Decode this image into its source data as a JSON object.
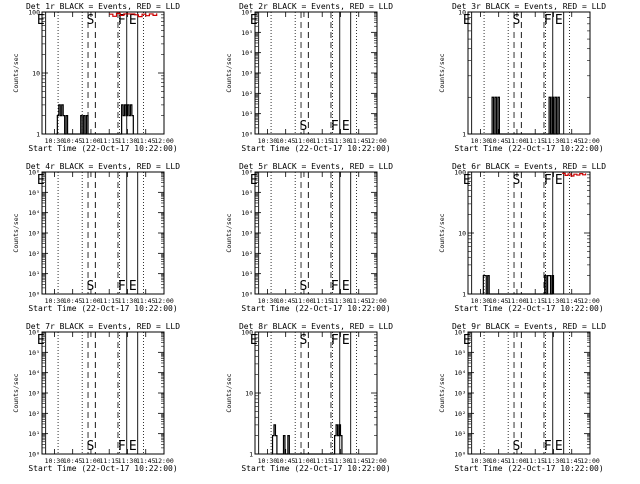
{
  "chart_data": [
    {
      "type": "line",
      "title": "Det 1r  BLACK = Events, RED = LLD",
      "xlabel": "Start Time (22-Oct-17 10:22:00)",
      "ylabel": "Counts/sec",
      "yscale": "log",
      "ylim": [
        1,
        100
      ],
      "yticks": [
        "1",
        "10",
        "100"
      ],
      "xlim": [
        10.33,
        12.0
      ],
      "xticks": [
        "10:30",
        "10:45",
        "11:00",
        "11:15",
        "11:30",
        "11:45",
        "12:00"
      ],
      "markers": [
        {
          "label": "E",
          "x": 10.38,
          "style": "solid"
        },
        {
          "label": "S",
          "x": 11.06,
          "style": "dashed"
        },
        {
          "label": "F",
          "x": 11.49,
          "style": "solid"
        },
        {
          "label": "E",
          "x": 11.64,
          "style": "solid"
        }
      ],
      "dotted": [
        10.55,
        10.88,
        11.39,
        11.72
      ],
      "dashed": [
        10.96,
        11.37
      ],
      "series": [
        {
          "name": "Events",
          "color": "#000000",
          "points": [
            [
              10.52,
              1
            ],
            [
              10.54,
              2
            ],
            [
              10.56,
              3
            ],
            [
              10.58,
              2
            ],
            [
              10.6,
              3
            ],
            [
              10.62,
              2
            ],
            [
              10.64,
              1
            ],
            [
              10.66,
              2
            ],
            [
              10.68,
              1
            ],
            [
              10.84,
              1
            ],
            [
              10.86,
              2
            ],
            [
              10.88,
              1
            ],
            [
              10.9,
              2
            ],
            [
              10.92,
              1
            ],
            [
              10.94,
              2
            ],
            [
              10.96,
              1
            ],
            [
              11.42,
              3
            ],
            [
              11.44,
              2
            ],
            [
              11.46,
              3
            ],
            [
              11.48,
              2
            ],
            [
              11.5,
              3
            ],
            [
              11.52,
              2
            ],
            [
              11.54,
              3
            ],
            [
              11.56,
              2
            ],
            [
              11.58,
              1
            ]
          ]
        },
        {
          "name": "LLD",
          "color": "#cc0000",
          "points": [
            [
              11.25,
              92
            ],
            [
              11.3,
              85
            ],
            [
              11.35,
              95
            ],
            [
              11.4,
              88
            ],
            [
              11.45,
              93
            ],
            [
              11.6,
              90
            ],
            [
              11.65,
              84
            ],
            [
              11.7,
              92
            ],
            [
              11.75,
              87
            ],
            [
              11.8,
              93
            ],
            [
              11.85,
              88
            ],
            [
              11.9,
              95
            ]
          ]
        }
      ]
    },
    {
      "type": "line",
      "title": "Det 2r  BLACK = Events, RED = LLD",
      "xlabel": "Start Time (22-Oct-17 10:22:00)",
      "ylabel": "Counts/sec",
      "yscale": "log",
      "ylim": [
        1,
        1000000
      ],
      "yticks": [
        "10⁰",
        "10¹",
        "10²",
        "10³",
        "10⁴",
        "10⁵",
        "10⁶"
      ],
      "xlim": [
        10.33,
        12.0
      ],
      "xticks": [
        "10:30",
        "10:45",
        "11:00",
        "11:15",
        "11:30",
        "11:45",
        "12:00"
      ],
      "markers": [
        {
          "label": "E",
          "x": 10.38,
          "style": "solid"
        },
        {
          "label": "S",
          "x": 11.06,
          "style": "dashed"
        },
        {
          "label": "F",
          "x": 11.49,
          "style": "solid"
        },
        {
          "label": "E",
          "x": 11.64,
          "style": "solid"
        }
      ],
      "dotted": [
        10.55,
        10.88,
        11.39,
        11.72
      ],
      "dashed": [
        10.96,
        11.37
      ],
      "series": []
    },
    {
      "type": "line",
      "title": "Det 3r  BLACK = Events, RED = LLD",
      "xlabel": "Start Time (22-Oct-17 10:22:00)",
      "ylabel": "Counts/sec",
      "yscale": "log",
      "ylim": [
        1,
        10
      ],
      "yticks": [
        "1",
        "10"
      ],
      "xlim": [
        10.33,
        12.0
      ],
      "xticks": [
        "10:30",
        "10:45",
        "11:00",
        "11:15",
        "11:30",
        "11:45",
        "12:00"
      ],
      "markers": [
        {
          "label": "E",
          "x": 10.38,
          "style": "solid"
        },
        {
          "label": "S",
          "x": 11.06,
          "style": "dashed"
        },
        {
          "label": "F",
          "x": 11.49,
          "style": "solid"
        },
        {
          "label": "E",
          "x": 11.64,
          "style": "solid"
        }
      ],
      "dotted": [
        10.55,
        10.88,
        11.39,
        11.72
      ],
      "dashed": [
        10.96,
        11.37
      ],
      "series": [
        {
          "name": "Events",
          "color": "#000000",
          "points": [
            [
              10.64,
              1
            ],
            [
              10.66,
              2
            ],
            [
              10.68,
              1
            ],
            [
              10.7,
              2
            ],
            [
              10.72,
              1
            ],
            [
              10.74,
              2
            ],
            [
              10.76,
              1
            ],
            [
              11.42,
              1
            ],
            [
              11.44,
              2
            ],
            [
              11.46,
              1
            ],
            [
              11.48,
              2
            ],
            [
              11.5,
              1
            ],
            [
              11.52,
              2
            ],
            [
              11.54,
              1
            ],
            [
              11.56,
              2
            ],
            [
              11.58,
              1
            ]
          ]
        }
      ]
    },
    {
      "type": "line",
      "title": "Det 4r  BLACK = Events, RED = LLD",
      "xlabel": "Start Time (22-Oct-17 10:22:00)",
      "ylabel": "Counts/sec",
      "yscale": "log",
      "ylim": [
        1,
        1000000
      ],
      "yticks": [
        "10⁰",
        "10¹",
        "10²",
        "10³",
        "10⁴",
        "10⁵",
        "10⁶"
      ],
      "xlim": [
        10.33,
        12.0
      ],
      "xticks": [
        "10:30",
        "10:45",
        "11:00",
        "11:15",
        "11:30",
        "11:45",
        "12:00"
      ],
      "markers": [
        {
          "label": "E",
          "x": 10.38,
          "style": "solid"
        },
        {
          "label": "S",
          "x": 11.06,
          "style": "dashed"
        },
        {
          "label": "F",
          "x": 11.49,
          "style": "solid"
        },
        {
          "label": "E",
          "x": 11.64,
          "style": "solid"
        }
      ],
      "dotted": [
        10.55,
        10.88,
        11.39,
        11.72
      ],
      "dashed": [
        10.96,
        11.37
      ],
      "series": []
    },
    {
      "type": "line",
      "title": "Det 5r  BLACK = Events, RED = LLD",
      "xlabel": "Start Time (22-Oct-17 10:22:00)",
      "ylabel": "Counts/sec",
      "yscale": "log",
      "ylim": [
        1,
        1000000
      ],
      "yticks": [
        "10⁰",
        "10¹",
        "10²",
        "10³",
        "10⁴",
        "10⁵",
        "10⁶"
      ],
      "xlim": [
        10.33,
        12.0
      ],
      "xticks": [
        "10:30",
        "10:45",
        "11:00",
        "11:15",
        "11:30",
        "11:45",
        "12:00"
      ],
      "markers": [
        {
          "label": "E",
          "x": 10.38,
          "style": "solid"
        },
        {
          "label": "S",
          "x": 11.06,
          "style": "dashed"
        },
        {
          "label": "F",
          "x": 11.49,
          "style": "solid"
        },
        {
          "label": "E",
          "x": 11.64,
          "style": "solid"
        }
      ],
      "dotted": [
        10.55,
        10.88,
        11.39,
        11.72
      ],
      "dashed": [
        10.96,
        11.37
      ],
      "series": []
    },
    {
      "type": "line",
      "title": "Det 6r  BLACK = Events, RED = LLD",
      "xlabel": "Start Time (22-Oct-17 10:22:00)",
      "ylabel": "Counts/sec",
      "yscale": "log",
      "ylim": [
        1,
        100
      ],
      "yticks": [
        "1",
        "10",
        "100"
      ],
      "xlim": [
        10.33,
        12.0
      ],
      "xticks": [
        "10:30",
        "10:45",
        "11:00",
        "11:15",
        "11:30",
        "11:45",
        "12:00"
      ],
      "markers": [
        {
          "label": "E",
          "x": 10.38,
          "style": "solid"
        },
        {
          "label": "S",
          "x": 11.06,
          "style": "dashed"
        },
        {
          "label": "F",
          "x": 11.49,
          "style": "solid"
        },
        {
          "label": "E",
          "x": 11.64,
          "style": "solid"
        }
      ],
      "dotted": [
        10.55,
        10.88,
        11.39,
        11.72
      ],
      "dashed": [
        10.96,
        11.37
      ],
      "series": [
        {
          "name": "Events",
          "color": "#000000",
          "points": [
            [
              10.53,
              1
            ],
            [
              10.54,
              2
            ],
            [
              10.56,
              2
            ],
            [
              10.58,
              1
            ],
            [
              10.6,
              2
            ],
            [
              10.62,
              1
            ],
            [
              11.36,
              1
            ],
            [
              11.38,
              2
            ],
            [
              11.4,
              1
            ],
            [
              11.42,
              2
            ],
            [
              11.44,
              2
            ],
            [
              11.46,
              1
            ],
            [
              11.48,
              2
            ],
            [
              11.5,
              1
            ]
          ]
        },
        {
          "name": "LLD",
          "color": "#cc0000",
          "points": [
            [
              11.62,
              95
            ],
            [
              11.66,
              88
            ],
            [
              11.7,
              93
            ],
            [
              11.74,
              86
            ],
            [
              11.78,
              92
            ],
            [
              11.82,
              89
            ],
            [
              11.86,
              94
            ],
            [
              11.9,
              90
            ],
            [
              11.94,
              95
            ]
          ]
        }
      ]
    },
    {
      "type": "line",
      "title": "Det 7r  BLACK = Events, RED = LLD",
      "xlabel": "Start Time (22-Oct-17 10:22:00)",
      "ylabel": "Counts/sec",
      "yscale": "log",
      "ylim": [
        1,
        1000000
      ],
      "yticks": [
        "10⁰",
        "10¹",
        "10²",
        "10³",
        "10⁴",
        "10⁵",
        "10⁶"
      ],
      "xlim": [
        10.33,
        12.0
      ],
      "xticks": [
        "10:30",
        "10:45",
        "11:00",
        "11:15",
        "11:30",
        "11:45",
        "12:00"
      ],
      "markers": [
        {
          "label": "E",
          "x": 10.38,
          "style": "solid"
        },
        {
          "label": "S",
          "x": 11.06,
          "style": "dashed"
        },
        {
          "label": "F",
          "x": 11.49,
          "style": "solid"
        },
        {
          "label": "E",
          "x": 11.64,
          "style": "solid"
        }
      ],
      "dotted": [
        10.55,
        10.88,
        11.39,
        11.72
      ],
      "dashed": [
        10.96,
        11.37
      ],
      "series": []
    },
    {
      "type": "line",
      "title": "Det 8r  BLACK = Events, RED = LLD",
      "xlabel": "Start Time (22-Oct-17 10:22:00)",
      "ylabel": "Counts/sec",
      "yscale": "log",
      "ylim": [
        1,
        100
      ],
      "yticks": [
        "1",
        "10",
        "100"
      ],
      "xlim": [
        10.33,
        12.0
      ],
      "xticks": [
        "10:30",
        "10:45",
        "11:00",
        "11:15",
        "11:30",
        "11:45",
        "12:00"
      ],
      "markers": [
        {
          "label": "E",
          "x": 10.38,
          "style": "solid"
        },
        {
          "label": "S",
          "x": 11.06,
          "style": "dashed"
        },
        {
          "label": "F",
          "x": 11.49,
          "style": "solid"
        },
        {
          "label": "E",
          "x": 11.64,
          "style": "solid"
        }
      ],
      "dotted": [
        10.55,
        10.88,
        11.39,
        11.72
      ],
      "dashed": [
        10.96,
        11.37
      ],
      "series": [
        {
          "name": "Events",
          "color": "#000000",
          "points": [
            [
              10.55,
              1
            ],
            [
              10.57,
              2
            ],
            [
              10.59,
              3
            ],
            [
              10.61,
              2
            ],
            [
              10.63,
              1
            ],
            [
              10.7,
              1
            ],
            [
              10.72,
              2
            ],
            [
              10.74,
              1
            ],
            [
              10.78,
              2
            ],
            [
              10.8,
              1
            ],
            [
              11.4,
              1
            ],
            [
              11.42,
              2
            ],
            [
              11.44,
              3
            ],
            [
              11.46,
              2
            ],
            [
              11.48,
              3
            ],
            [
              11.5,
              2
            ],
            [
              11.52,
              1
            ]
          ]
        }
      ]
    },
    {
      "type": "line",
      "title": "Det 9r  BLACK = Events, RED = LLD",
      "xlabel": "Start Time (22-Oct-17 10:22:00)",
      "ylabel": "Counts/sec",
      "yscale": "log",
      "ylim": [
        1,
        1000000
      ],
      "yticks": [
        "10⁰",
        "10¹",
        "10²",
        "10³",
        "10⁴",
        "10⁵",
        "10⁶"
      ],
      "xlim": [
        10.33,
        12.0
      ],
      "xticks": [
        "10:30",
        "10:45",
        "11:00",
        "11:15",
        "11:30",
        "11:45",
        "12:00"
      ],
      "markers": [
        {
          "label": "E",
          "x": 10.38,
          "style": "solid"
        },
        {
          "label": "S",
          "x": 11.06,
          "style": "dashed"
        },
        {
          "label": "F",
          "x": 11.49,
          "style": "solid"
        },
        {
          "label": "E",
          "x": 11.64,
          "style": "solid"
        }
      ],
      "dotted": [
        10.55,
        10.88,
        11.39,
        11.72
      ],
      "dashed": [
        10.96,
        11.37
      ],
      "series": []
    }
  ]
}
